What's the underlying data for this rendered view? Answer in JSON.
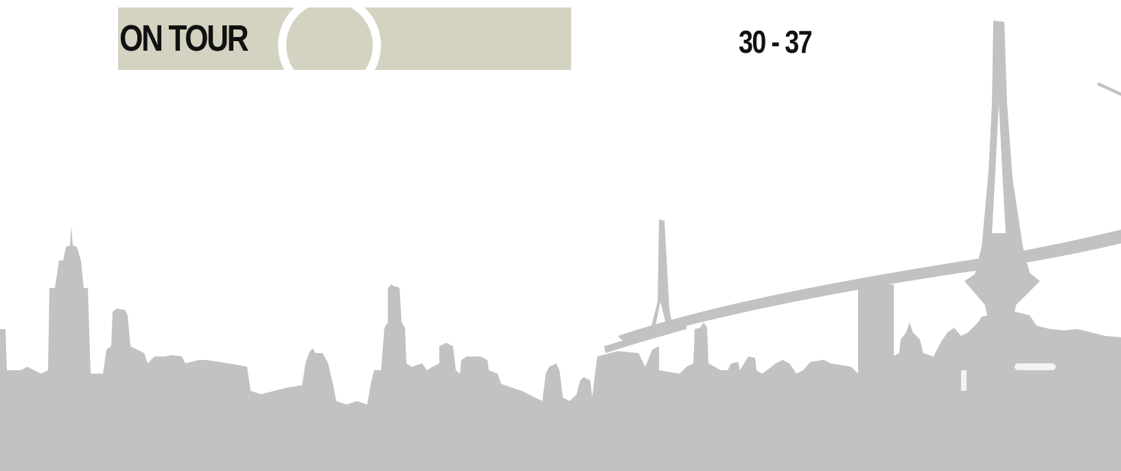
{
  "header": {
    "section_title": "ON TOUR",
    "page_range": "30 - 37"
  },
  "colors": {
    "band": "#d4d2c0",
    "skyline": "#c2c2c2",
    "text": "#111111"
  }
}
